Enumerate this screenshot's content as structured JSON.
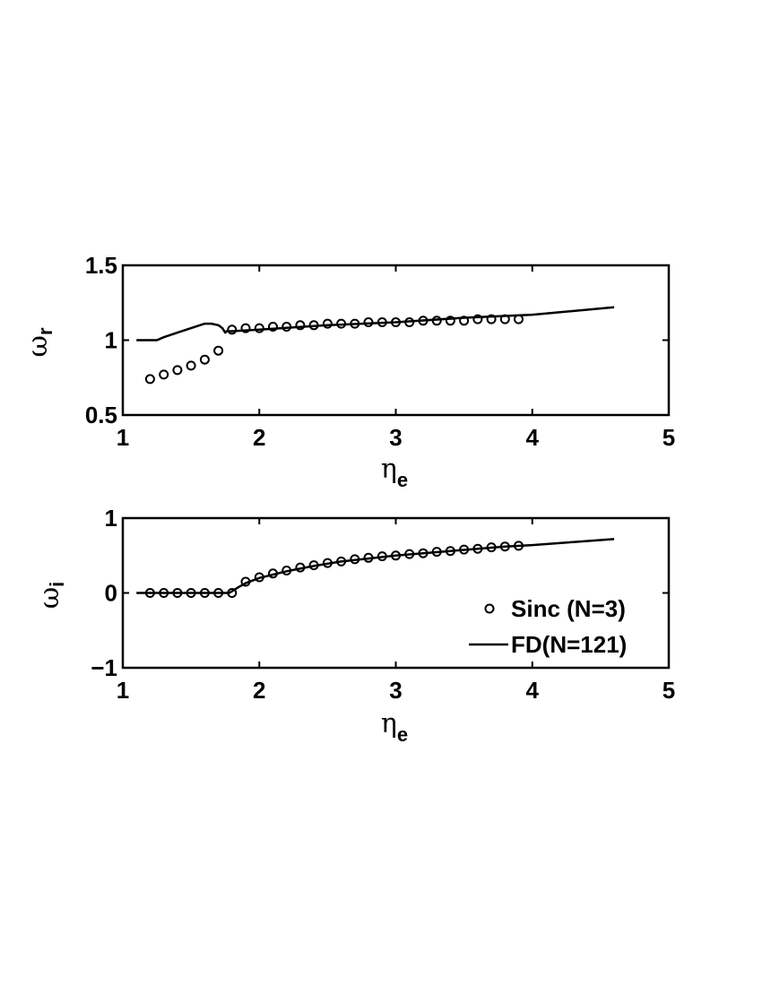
{
  "chart_data": [
    {
      "type": "line",
      "ylabel": "ω",
      "ylabel_sub": "r",
      "xlabel": "η",
      "xlabel_sub": "e",
      "xlim": [
        1,
        5
      ],
      "ylim": [
        0.5,
        1.5
      ],
      "xticks": [
        "1",
        "2",
        "3",
        "4",
        "5"
      ],
      "yticks": [
        "0.5",
        "1",
        "1.5"
      ],
      "series": [
        {
          "name": "Sinc (N=3)",
          "style": "circles",
          "x": [
            1.2,
            1.3,
            1.4,
            1.5,
            1.6,
            1.7,
            1.8,
            1.9,
            2.0,
            2.1,
            2.2,
            2.3,
            2.4,
            2.5,
            2.6,
            2.7,
            2.8,
            2.9,
            3.0,
            3.1,
            3.2,
            3.3,
            3.4,
            3.5,
            3.6,
            3.7,
            3.8,
            3.9
          ],
          "y": [
            0.74,
            0.77,
            0.8,
            0.83,
            0.87,
            0.93,
            1.07,
            1.08,
            1.08,
            1.09,
            1.09,
            1.1,
            1.1,
            1.11,
            1.11,
            1.11,
            1.12,
            1.12,
            1.12,
            1.12,
            1.13,
            1.13,
            1.13,
            1.13,
            1.14,
            1.14,
            1.14,
            1.14
          ]
        },
        {
          "name": "FD(N=121)",
          "style": "line",
          "x": [
            1.1,
            1.25,
            1.3,
            1.4,
            1.5,
            1.6,
            1.65,
            1.7,
            1.73,
            1.75,
            1.76,
            1.8,
            2.0,
            2.5,
            3.0,
            3.5,
            4.0,
            4.6
          ],
          "y": [
            1.0,
            1.0,
            1.02,
            1.05,
            1.08,
            1.11,
            1.11,
            1.1,
            1.08,
            1.05,
            1.06,
            1.06,
            1.07,
            1.1,
            1.12,
            1.15,
            1.17,
            1.22
          ]
        }
      ]
    },
    {
      "type": "line",
      "ylabel": "ω",
      "ylabel_sub": "i",
      "xlabel": "η",
      "xlabel_sub": "e",
      "xlim": [
        1,
        5
      ],
      "ylim": [
        -1,
        1
      ],
      "xticks": [
        "1",
        "2",
        "3",
        "4",
        "5"
      ],
      "yticks": [
        "−1",
        "0",
        "1"
      ],
      "legend_position": "bottom-right",
      "series": [
        {
          "name": "Sinc (N=3)",
          "style": "circles",
          "x": [
            1.2,
            1.3,
            1.4,
            1.5,
            1.6,
            1.7,
            1.8,
            1.9,
            2.0,
            2.1,
            2.2,
            2.3,
            2.4,
            2.5,
            2.6,
            2.7,
            2.8,
            2.9,
            3.0,
            3.1,
            3.2,
            3.3,
            3.4,
            3.5,
            3.6,
            3.7,
            3.8,
            3.9
          ],
          "y": [
            0,
            0,
            0,
            0,
            0,
            0,
            0,
            0.15,
            0.21,
            0.26,
            0.3,
            0.34,
            0.37,
            0.4,
            0.42,
            0.45,
            0.47,
            0.49,
            0.5,
            0.52,
            0.53,
            0.55,
            0.56,
            0.58,
            0.59,
            0.61,
            0.62,
            0.63
          ]
        },
        {
          "name": "FD(N=121)",
          "style": "line",
          "x": [
            1.1,
            1.78,
            1.85,
            1.9,
            2.0,
            2.2,
            2.4,
            2.6,
            2.8,
            3.0,
            3.2,
            3.4,
            3.6,
            3.8,
            4.0,
            4.3,
            4.6
          ],
          "y": [
            0,
            0,
            0.08,
            0.13,
            0.2,
            0.29,
            0.36,
            0.42,
            0.46,
            0.5,
            0.53,
            0.56,
            0.59,
            0.62,
            0.64,
            0.68,
            0.72
          ]
        }
      ]
    }
  ]
}
